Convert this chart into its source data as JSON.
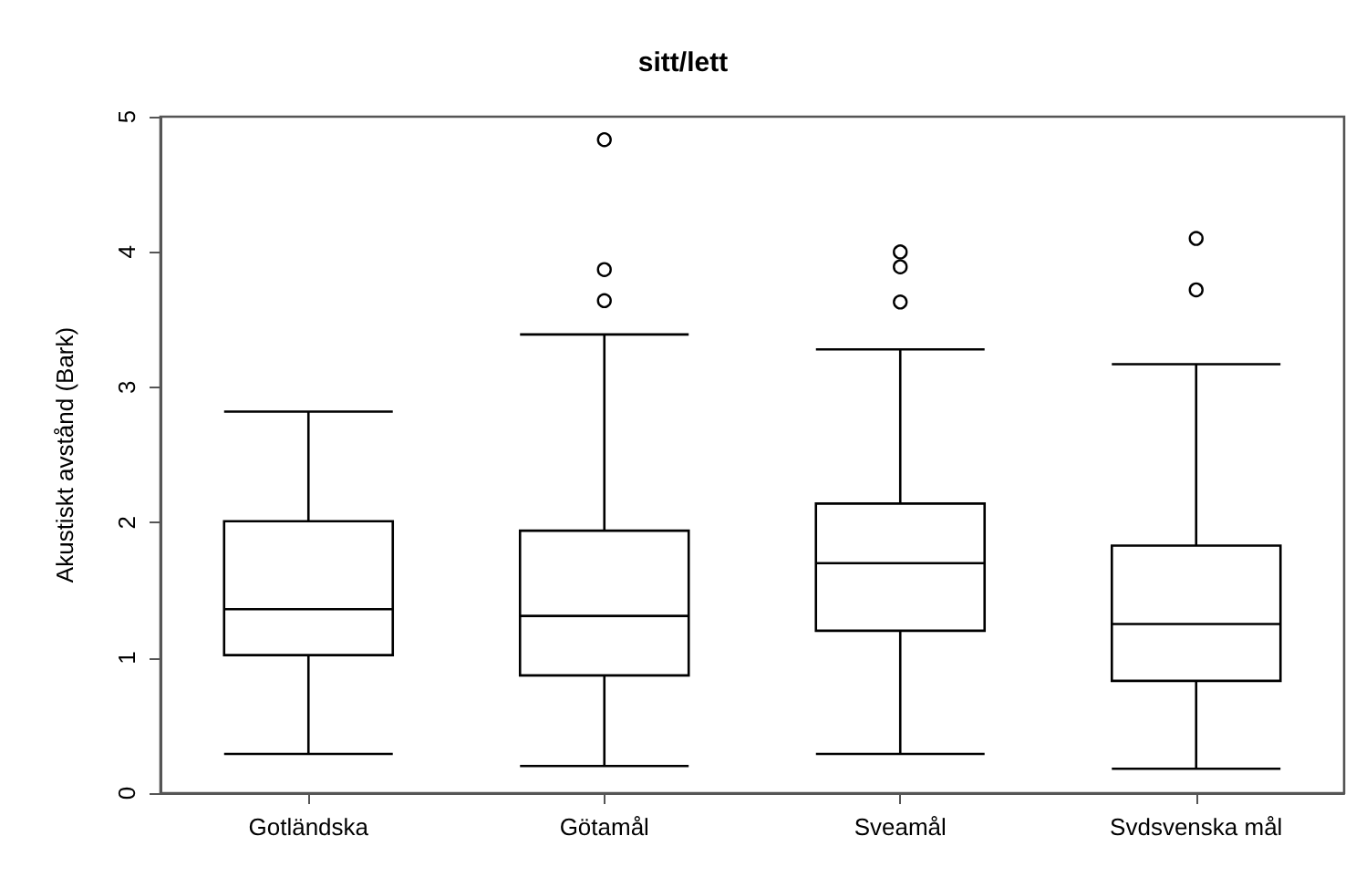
{
  "chart_data": {
    "type": "box",
    "title": "sitt/lett",
    "ylabel": "Akustiskt avstånd (Bark)",
    "categories": [
      "Gotländska",
      "Götamål",
      "Sveamål",
      "Svdsvenska mål"
    ],
    "boxes": [
      {
        "low": 0.29,
        "q1": 1.02,
        "median": 1.36,
        "q3": 2.01,
        "high": 2.82
      },
      {
        "low": 0.2,
        "q1": 0.87,
        "median": 1.31,
        "q3": 1.94,
        "high": 3.39,
        "outliers": [
          3.64,
          3.87,
          4.83
        ]
      },
      {
        "low": 0.29,
        "q1": 1.2,
        "median": 1.7,
        "q3": 2.14,
        "high": 3.28,
        "outliers": [
          3.63,
          3.89,
          4.0
        ]
      },
      {
        "low": 0.18,
        "q1": 0.83,
        "median": 1.25,
        "q3": 1.83,
        "high": 3.17,
        "outliers": [
          3.72,
          4.1
        ]
      }
    ],
    "color": "#000000",
    "ylim": [
      0,
      5
    ],
    "yticks": [
      0,
      1,
      2,
      3,
      4,
      5
    ],
    "grid": false
  }
}
